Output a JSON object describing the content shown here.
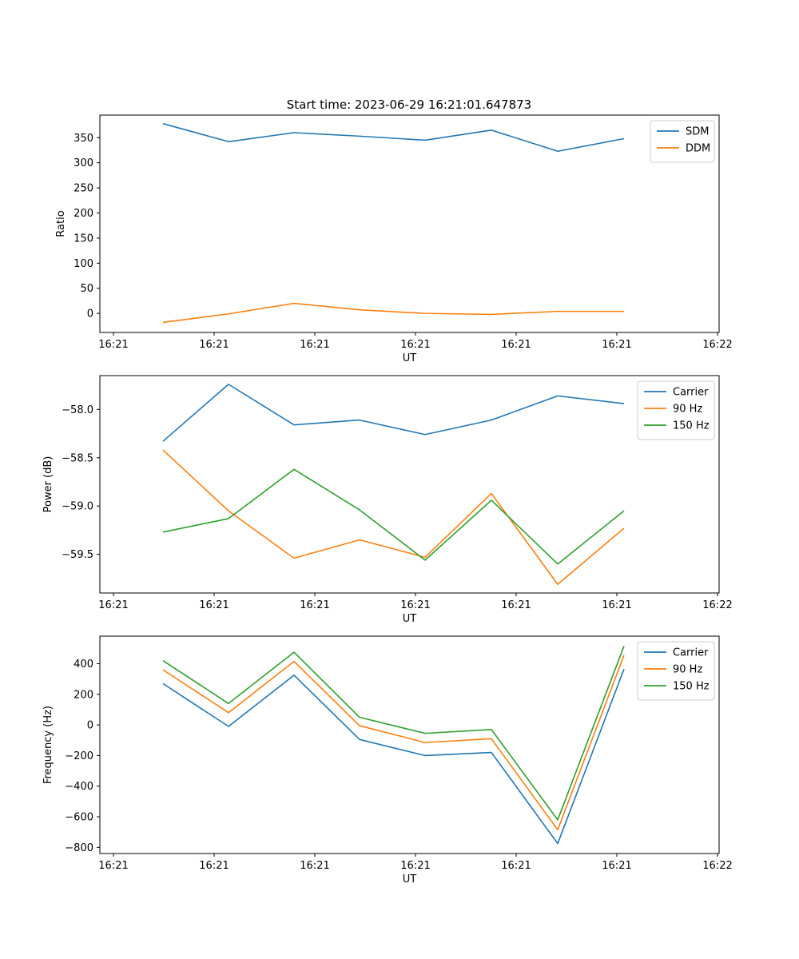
{
  "title": "Start time: 2023-06-29 16:21:01.647873",
  "colors": {
    "blue": "#1f77b4",
    "orange": "#ff7f0e",
    "green": "#2ca02c"
  },
  "chart_data": [
    {
      "type": "line",
      "xlabel": "UT",
      "ylabel": "Ratio",
      "x_tick_labels": [
        "16:21",
        "16:21",
        "16:21",
        "16:21",
        "16:21",
        "16:21",
        "16:22"
      ],
      "y_ticks": [
        0,
        50,
        100,
        150,
        200,
        250,
        300,
        350
      ],
      "ylim": [
        -38,
        395
      ],
      "legend": "top-right",
      "grid": false,
      "series": [
        {
          "name": "SDM",
          "color": "#1f77b4",
          "values": [
            378,
            342,
            360,
            353,
            345,
            365,
            323,
            348
          ]
        },
        {
          "name": "DDM",
          "color": "#ff7f0e",
          "values": [
            -18,
            -1,
            20,
            7,
            0,
            -2,
            4,
            4
          ]
        }
      ]
    },
    {
      "type": "line",
      "xlabel": "UT",
      "ylabel": "Power (dB)",
      "x_tick_labels": [
        "16:21",
        "16:21",
        "16:21",
        "16:21",
        "16:21",
        "16:21",
        "16:22"
      ],
      "y_ticks": [
        -58.0,
        -58.5,
        -59.0,
        -59.5
      ],
      "y_tick_labels": [
        "−58.0",
        "−58.5",
        "−59.0",
        "−59.5"
      ],
      "ylim": [
        -59.9,
        -57.65
      ],
      "legend": "top-right",
      "grid": false,
      "series": [
        {
          "name": "Carrier",
          "color": "#1f77b4",
          "values": [
            -58.33,
            -57.74,
            -58.16,
            -58.11,
            -58.26,
            -58.11,
            -57.86,
            -57.94
          ]
        },
        {
          "name": "90 Hz",
          "color": "#ff7f0e",
          "values": [
            -58.42,
            -59.05,
            -59.54,
            -59.35,
            -59.53,
            -58.87,
            -59.81,
            -59.23
          ]
        },
        {
          "name": "150 Hz",
          "color": "#2ca02c",
          "values": [
            -59.27,
            -59.13,
            -58.62,
            -59.04,
            -59.56,
            -58.94,
            -59.6,
            -59.05
          ]
        }
      ]
    },
    {
      "type": "line",
      "xlabel": "UT",
      "ylabel": "Frequency (Hz)",
      "x_tick_labels": [
        "16:21",
        "16:21",
        "16:21",
        "16:21",
        "16:21",
        "16:21",
        "16:22"
      ],
      "y_ticks": [
        -800,
        -600,
        -400,
        -200,
        0,
        200,
        400
      ],
      "y_tick_labels": [
        "−800",
        "−600",
        "−400",
        "−200",
        "0",
        "200",
        "400"
      ],
      "ylim": [
        -840,
        580
      ],
      "legend": "top-right",
      "grid": false,
      "series": [
        {
          "name": "Carrier",
          "color": "#1f77b4",
          "values": [
            270,
            -10,
            325,
            -95,
            -200,
            -180,
            -775,
            365
          ]
        },
        {
          "name": "90 Hz",
          "color": "#ff7f0e",
          "values": [
            360,
            80,
            415,
            -5,
            -115,
            -90,
            -685,
            455
          ]
        },
        {
          "name": "150 Hz",
          "color": "#2ca02c",
          "values": [
            420,
            140,
            475,
            50,
            -55,
            -30,
            -620,
            515
          ]
        }
      ]
    }
  ]
}
